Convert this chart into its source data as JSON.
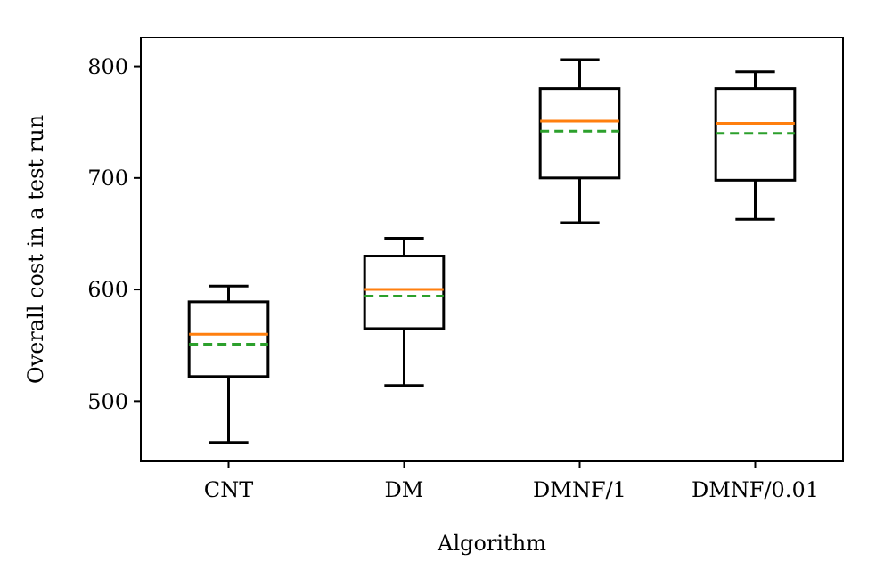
{
  "chart_data": {
    "type": "box",
    "xlabel": "Algorithm",
    "ylabel": "Overall cost in a test run",
    "categories": [
      "CNT",
      "DM",
      "DMNF/1",
      "DMNF/0.01"
    ],
    "boxes": [
      {
        "low": 463,
        "q1": 522,
        "median": 560,
        "q3": 589,
        "high": 603,
        "mean": 551
      },
      {
        "low": 514,
        "q1": 565,
        "median": 600,
        "q3": 630,
        "high": 646,
        "mean": 594
      },
      {
        "low": 660,
        "q1": 700,
        "median": 751,
        "q3": 780,
        "high": 806,
        "mean": 742
      },
      {
        "low": 663,
        "q1": 698,
        "median": 749,
        "q3": 780,
        "high": 795,
        "mean": 740
      }
    ],
    "ylim": [
      446,
      826
    ],
    "yticks": [
      500,
      600,
      700,
      800
    ],
    "grid": false
  }
}
